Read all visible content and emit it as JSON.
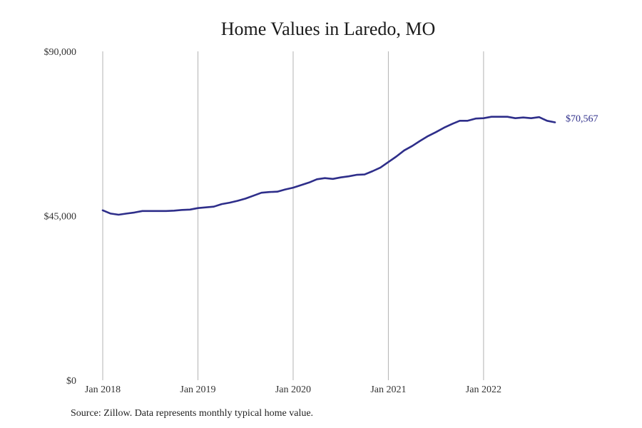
{
  "chart_data": {
    "type": "line",
    "title": "Home Values in Laredo, MO",
    "xlabel": "",
    "ylabel": "",
    "source": "Source: Zillow. Data represents monthly typical home value.",
    "y_ticks": [
      "$0",
      "$45,000",
      "$90,000"
    ],
    "y_tick_values": [
      0,
      45000,
      90000
    ],
    "ylim": [
      0,
      90000
    ],
    "x_ticks": [
      "Jan 2018",
      "Jan 2019",
      "Jan 2020",
      "Jan 2021",
      "Jan 2022"
    ],
    "x_tick_dates": [
      "2018-01",
      "2019-01",
      "2020-01",
      "2021-01",
      "2022-01"
    ],
    "xlim": [
      "2018-01",
      "2022-10"
    ],
    "grid": "vertical",
    "end_label": "$70,567",
    "line_color": "#2e2e8a",
    "series": [
      {
        "x": [
          "2018-01",
          "2018-02",
          "2018-03",
          "2018-04",
          "2018-05",
          "2018-06",
          "2018-07",
          "2018-08",
          "2018-09",
          "2018-10",
          "2018-11",
          "2018-12",
          "2019-01",
          "2019-02",
          "2019-03",
          "2019-04",
          "2019-05",
          "2019-06",
          "2019-07",
          "2019-08",
          "2019-09",
          "2019-10",
          "2019-11",
          "2019-12",
          "2020-01",
          "2020-02",
          "2020-03",
          "2020-04",
          "2020-05",
          "2020-06",
          "2020-07",
          "2020-08",
          "2020-09",
          "2020-10",
          "2020-11",
          "2020-12",
          "2021-01",
          "2021-02",
          "2021-03",
          "2021-04",
          "2021-05",
          "2021-06",
          "2021-07",
          "2021-08",
          "2021-09",
          "2021-10",
          "2021-11",
          "2021-12",
          "2022-01",
          "2022-02",
          "2022-03",
          "2022-04",
          "2022-05",
          "2022-06",
          "2022-07",
          "2022-08",
          "2022-09",
          "2022-10"
        ],
        "values": [
          46500,
          45600,
          45300,
          45600,
          45900,
          46300,
          46300,
          46300,
          46300,
          46400,
          46600,
          46700,
          47100,
          47300,
          47500,
          48200,
          48600,
          49100,
          49700,
          50500,
          51300,
          51500,
          51600,
          52200,
          52700,
          53400,
          54100,
          55000,
          55300,
          55100,
          55500,
          55800,
          56200,
          56300,
          57200,
          58200,
          59700,
          61200,
          62900,
          64100,
          65500,
          66800,
          67900,
          69100,
          70100,
          71000,
          71000,
          71600,
          71700,
          72100,
          72100,
          72100,
          71700,
          71900,
          71700,
          72000,
          71000,
          70567
        ]
      }
    ]
  }
}
